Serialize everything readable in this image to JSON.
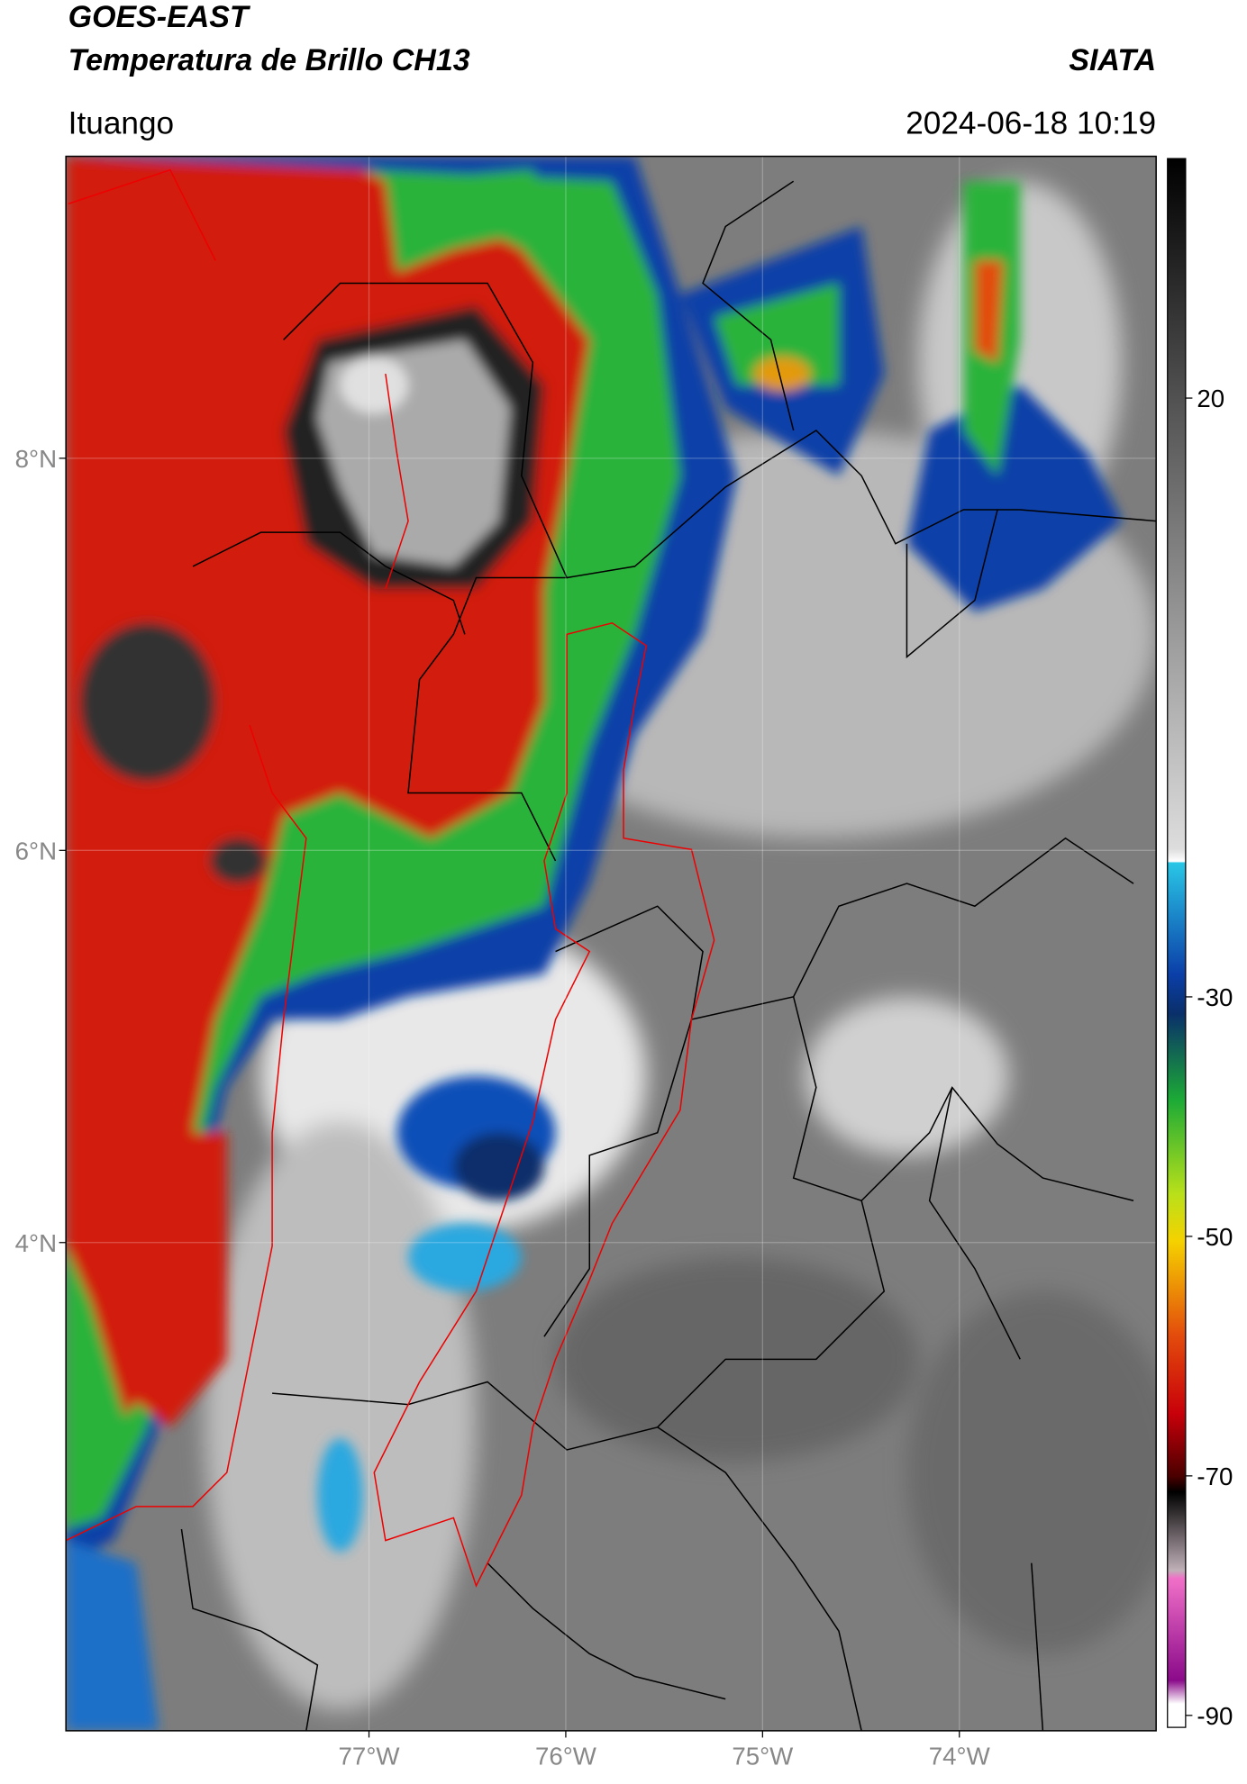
{
  "header": {
    "title": "GOES-EAST",
    "subtitle": "Temperatura de Brillo CH13",
    "source": "SIATA",
    "location": "Ituango",
    "timestamp": "2024-06-18 10:19"
  },
  "map": {
    "xlim": [
      -78.54,
      -73.0
    ],
    "ylim": [
      1.51,
      9.54
    ],
    "xticks": [
      {
        "value": -77,
        "label": "77°W"
      },
      {
        "value": -76,
        "label": "76°W"
      },
      {
        "value": -75,
        "label": "75°W"
      },
      {
        "value": -74,
        "label": "74°W"
      }
    ],
    "yticks": [
      {
        "value": 8,
        "label": "8°N"
      },
      {
        "value": 6,
        "label": "6°N"
      },
      {
        "value": 4,
        "label": "4°N"
      }
    ]
  },
  "colorbar": {
    "clim": [
      -91,
      40
    ],
    "ticks": [
      20,
      -30,
      -50,
      -70,
      -90
    ]
  }
}
